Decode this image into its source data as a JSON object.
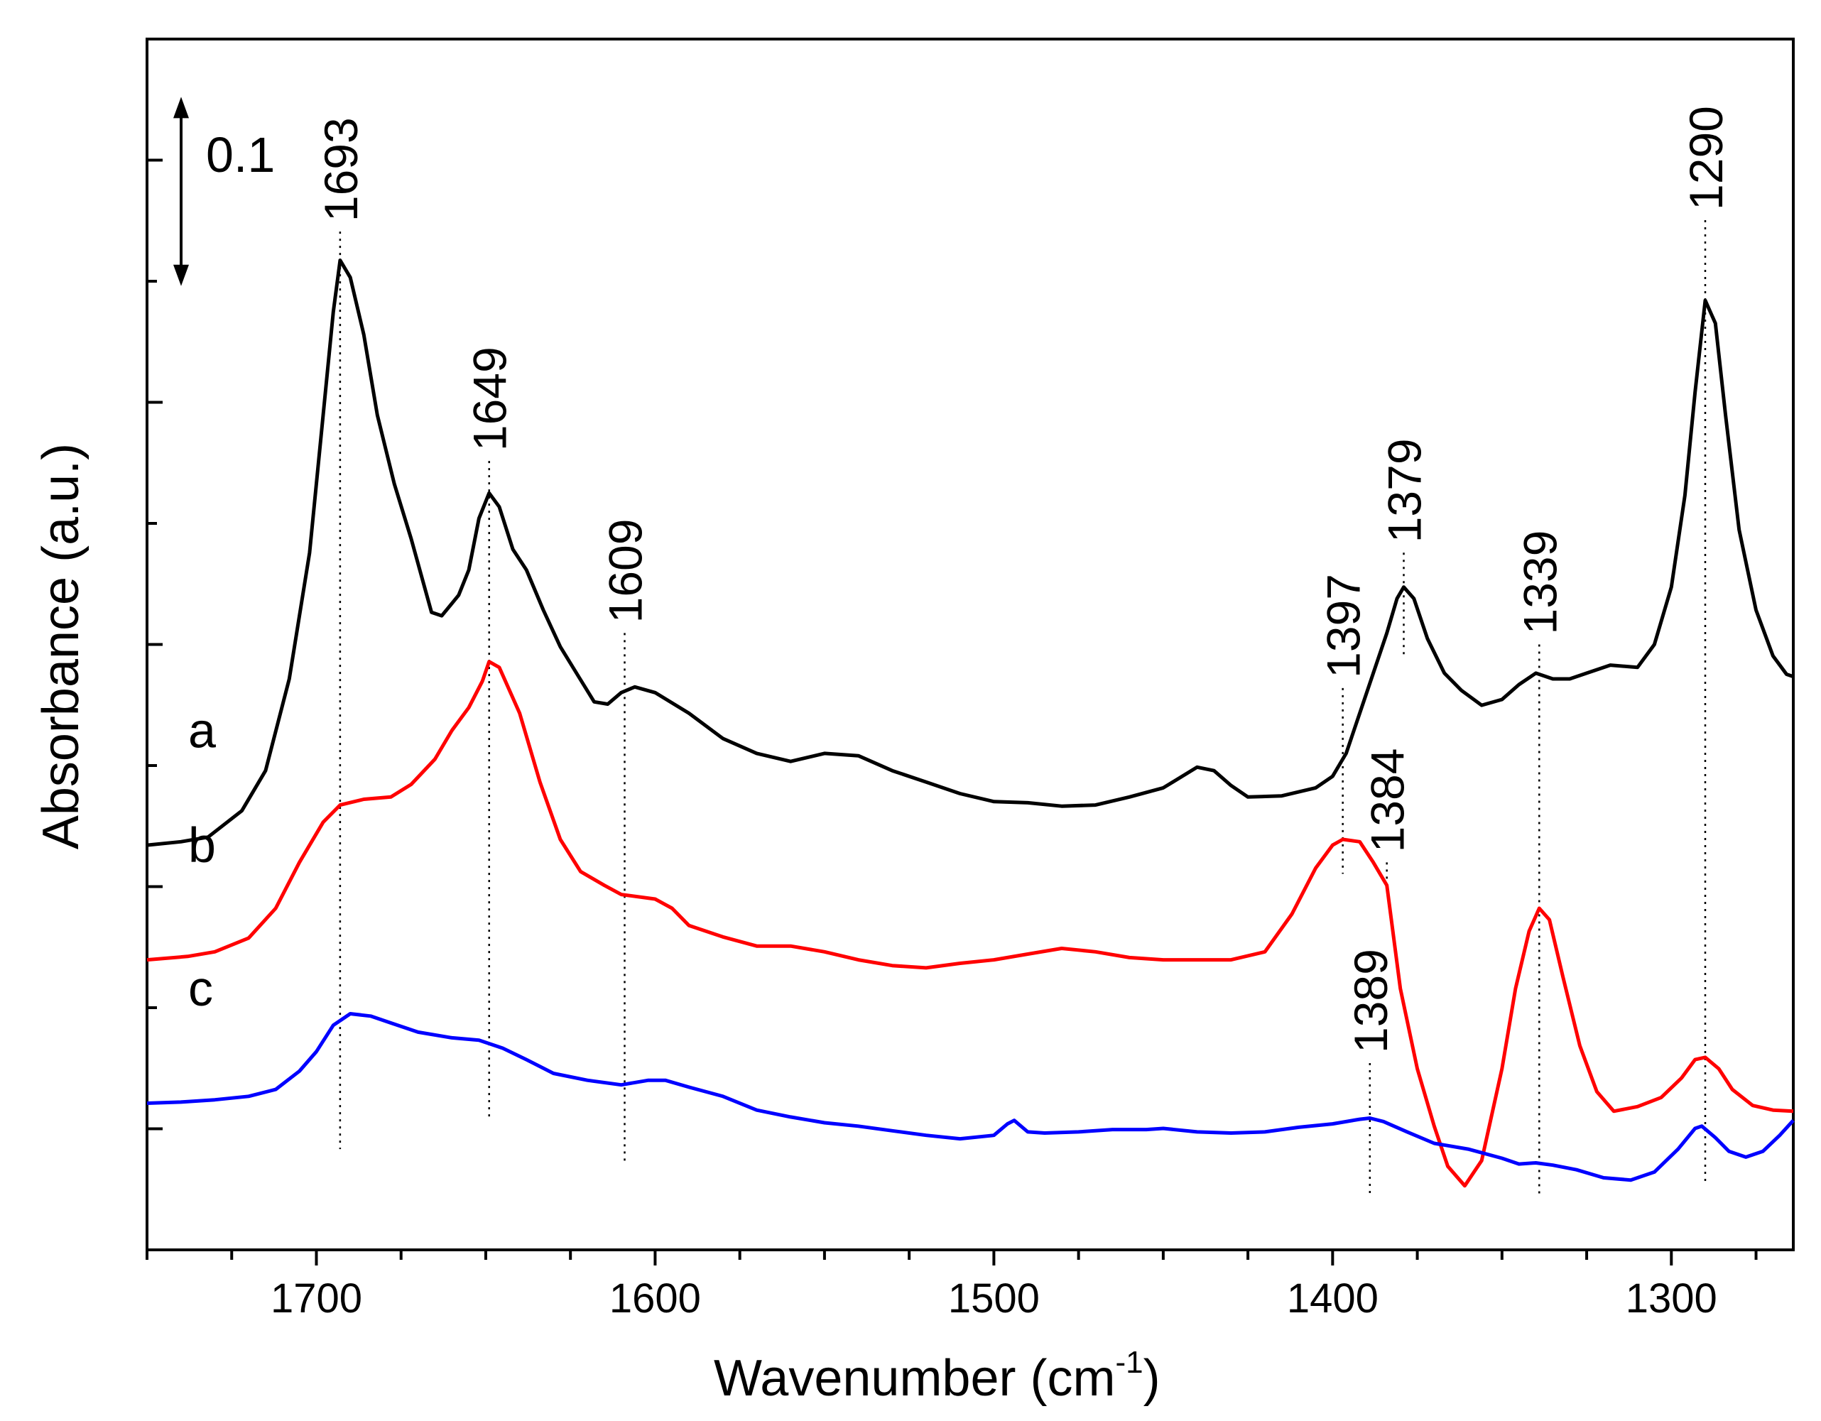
{
  "chart_data": {
    "type": "line",
    "title": "",
    "xlabel": "Wavenumber (cm",
    "xlabel_sup": "-1",
    "xlabel_close": ")",
    "ylabel": "Absorbance (a.u.)",
    "xlim": [
      1750,
      1264
    ],
    "ylim": [
      0,
      1
    ],
    "x_reversed": true,
    "xticks": [
      1700,
      1600,
      1500,
      1400,
      1300
    ],
    "xtick_labels": [
      "1700",
      "1600",
      "1500",
      "1400",
      "1300"
    ],
    "yticks_count": 11,
    "scale_bar": {
      "label": "0.1",
      "value": 0.1
    },
    "series": [
      {
        "name": "a",
        "color": "#000000",
        "points": [
          [
            1750,
            0.325
          ],
          [
            1740,
            0.328
          ],
          [
            1732,
            0.332
          ],
          [
            1722,
            0.355
          ],
          [
            1715,
            0.39
          ],
          [
            1708,
            0.47
          ],
          [
            1702,
            0.58
          ],
          [
            1698,
            0.7
          ],
          [
            1695,
            0.79
          ],
          [
            1693,
            0.835
          ],
          [
            1690,
            0.82
          ],
          [
            1686,
            0.77
          ],
          [
            1682,
            0.7
          ],
          [
            1677,
            0.64
          ],
          [
            1672,
            0.592
          ],
          [
            1666,
            0.528
          ],
          [
            1663,
            0.525
          ],
          [
            1658,
            0.543
          ],
          [
            1655,
            0.565
          ],
          [
            1652,
            0.61
          ],
          [
            1649,
            0.632
          ],
          [
            1646,
            0.62
          ],
          [
            1642,
            0.583
          ],
          [
            1638,
            0.565
          ],
          [
            1633,
            0.53
          ],
          [
            1628,
            0.498
          ],
          [
            1623,
            0.474
          ],
          [
            1618,
            0.45
          ],
          [
            1614,
            0.448
          ],
          [
            1610,
            0.458
          ],
          [
            1606,
            0.463
          ],
          [
            1600,
            0.458
          ],
          [
            1590,
            0.44
          ],
          [
            1580,
            0.418
          ],
          [
            1570,
            0.405
          ],
          [
            1560,
            0.398
          ],
          [
            1550,
            0.405
          ],
          [
            1540,
            0.403
          ],
          [
            1530,
            0.39
          ],
          [
            1520,
            0.38
          ],
          [
            1510,
            0.37
          ],
          [
            1500,
            0.363
          ],
          [
            1490,
            0.362
          ],
          [
            1480,
            0.359
          ],
          [
            1470,
            0.36
          ],
          [
            1460,
            0.367
          ],
          [
            1450,
            0.375
          ],
          [
            1440,
            0.393
          ],
          [
            1435,
            0.39
          ],
          [
            1430,
            0.377
          ],
          [
            1425,
            0.367
          ],
          [
            1415,
            0.368
          ],
          [
            1405,
            0.375
          ],
          [
            1400,
            0.385
          ],
          [
            1396,
            0.405
          ],
          [
            1392,
            0.44
          ],
          [
            1388,
            0.475
          ],
          [
            1384,
            0.51
          ],
          [
            1381,
            0.54
          ],
          [
            1379,
            0.55
          ],
          [
            1376,
            0.54
          ],
          [
            1372,
            0.505
          ],
          [
            1367,
            0.475
          ],
          [
            1362,
            0.46
          ],
          [
            1356,
            0.447
          ],
          [
            1350,
            0.452
          ],
          [
            1345,
            0.465
          ],
          [
            1340,
            0.475
          ],
          [
            1335,
            0.47
          ],
          [
            1330,
            0.47
          ],
          [
            1325,
            0.475
          ],
          [
            1318,
            0.482
          ],
          [
            1310,
            0.48
          ],
          [
            1305,
            0.5
          ],
          [
            1300,
            0.55
          ],
          [
            1296,
            0.63
          ],
          [
            1293,
            0.72
          ],
          [
            1290,
            0.8
          ],
          [
            1287,
            0.78
          ],
          [
            1284,
            0.7
          ],
          [
            1280,
            0.6
          ],
          [
            1275,
            0.53
          ],
          [
            1270,
            0.49
          ],
          [
            1266,
            0.474
          ],
          [
            1264,
            0.472
          ]
        ]
      },
      {
        "name": "b",
        "color": "#ff0000",
        "points": [
          [
            1750,
            0.225
          ],
          [
            1738,
            0.228
          ],
          [
            1730,
            0.232
          ],
          [
            1720,
            0.244
          ],
          [
            1712,
            0.27
          ],
          [
            1705,
            0.31
          ],
          [
            1698,
            0.345
          ],
          [
            1693,
            0.36
          ],
          [
            1686,
            0.365
          ],
          [
            1678,
            0.367
          ],
          [
            1672,
            0.378
          ],
          [
            1665,
            0.4
          ],
          [
            1660,
            0.425
          ],
          [
            1655,
            0.445
          ],
          [
            1651,
            0.468
          ],
          [
            1649,
            0.485
          ],
          [
            1646,
            0.48
          ],
          [
            1640,
            0.44
          ],
          [
            1634,
            0.38
          ],
          [
            1628,
            0.33
          ],
          [
            1622,
            0.302
          ],
          [
            1615,
            0.29
          ],
          [
            1610,
            0.282
          ],
          [
            1600,
            0.278
          ],
          [
            1595,
            0.27
          ],
          [
            1590,
            0.255
          ],
          [
            1580,
            0.245
          ],
          [
            1570,
            0.237
          ],
          [
            1560,
            0.237
          ],
          [
            1550,
            0.232
          ],
          [
            1540,
            0.225
          ],
          [
            1530,
            0.22
          ],
          [
            1520,
            0.218
          ],
          [
            1510,
            0.222
          ],
          [
            1500,
            0.225
          ],
          [
            1490,
            0.23
          ],
          [
            1480,
            0.235
          ],
          [
            1470,
            0.232
          ],
          [
            1460,
            0.227
          ],
          [
            1450,
            0.225
          ],
          [
            1440,
            0.225
          ],
          [
            1430,
            0.225
          ],
          [
            1420,
            0.232
          ],
          [
            1412,
            0.265
          ],
          [
            1405,
            0.305
          ],
          [
            1400,
            0.325
          ],
          [
            1397,
            0.33
          ],
          [
            1392,
            0.328
          ],
          [
            1388,
            0.31
          ],
          [
            1384,
            0.29
          ],
          [
            1380,
            0.2
          ],
          [
            1375,
            0.13
          ],
          [
            1370,
            0.08
          ],
          [
            1366,
            0.045
          ],
          [
            1361,
            0.028
          ],
          [
            1356,
            0.05
          ],
          [
            1350,
            0.13
          ],
          [
            1346,
            0.2
          ],
          [
            1342,
            0.25
          ],
          [
            1339,
            0.27
          ],
          [
            1336,
            0.26
          ],
          [
            1332,
            0.21
          ],
          [
            1327,
            0.15
          ],
          [
            1322,
            0.11
          ],
          [
            1317,
            0.093
          ],
          [
            1310,
            0.097
          ],
          [
            1303,
            0.105
          ],
          [
            1297,
            0.122
          ],
          [
            1293,
            0.138
          ],
          [
            1290,
            0.14
          ],
          [
            1286,
            0.13
          ],
          [
            1282,
            0.112
          ],
          [
            1276,
            0.098
          ],
          [
            1270,
            0.094
          ],
          [
            1264,
            0.093
          ]
        ]
      },
      {
        "name": "c",
        "color": "#0000ff",
        "points": [
          [
            1750,
            0.1
          ],
          [
            1740,
            0.101
          ],
          [
            1730,
            0.103
          ],
          [
            1720,
            0.106
          ],
          [
            1712,
            0.112
          ],
          [
            1705,
            0.128
          ],
          [
            1700,
            0.145
          ],
          [
            1695,
            0.168
          ],
          [
            1690,
            0.178
          ],
          [
            1684,
            0.176
          ],
          [
            1678,
            0.17
          ],
          [
            1670,
            0.162
          ],
          [
            1660,
            0.157
          ],
          [
            1652,
            0.155
          ],
          [
            1645,
            0.148
          ],
          [
            1638,
            0.138
          ],
          [
            1630,
            0.126
          ],
          [
            1620,
            0.12
          ],
          [
            1610,
            0.116
          ],
          [
            1602,
            0.12
          ],
          [
            1597,
            0.12
          ],
          [
            1590,
            0.114
          ],
          [
            1580,
            0.106
          ],
          [
            1570,
            0.094
          ],
          [
            1560,
            0.088
          ],
          [
            1550,
            0.083
          ],
          [
            1540,
            0.08
          ],
          [
            1530,
            0.076
          ],
          [
            1520,
            0.072
          ],
          [
            1510,
            0.069
          ],
          [
            1500,
            0.072
          ],
          [
            1496,
            0.082
          ],
          [
            1494,
            0.085
          ],
          [
            1490,
            0.075
          ],
          [
            1485,
            0.074
          ],
          [
            1475,
            0.075
          ],
          [
            1465,
            0.077
          ],
          [
            1455,
            0.077
          ],
          [
            1450,
            0.078
          ],
          [
            1440,
            0.075
          ],
          [
            1430,
            0.074
          ],
          [
            1420,
            0.075
          ],
          [
            1410,
            0.079
          ],
          [
            1400,
            0.082
          ],
          [
            1392,
            0.086
          ],
          [
            1389,
            0.087
          ],
          [
            1385,
            0.084
          ],
          [
            1378,
            0.075
          ],
          [
            1370,
            0.065
          ],
          [
            1360,
            0.06
          ],
          [
            1350,
            0.052
          ],
          [
            1345,
            0.047
          ],
          [
            1340,
            0.048
          ],
          [
            1335,
            0.046
          ],
          [
            1328,
            0.042
          ],
          [
            1320,
            0.035
          ],
          [
            1312,
            0.033
          ],
          [
            1305,
            0.04
          ],
          [
            1298,
            0.06
          ],
          [
            1293,
            0.078
          ],
          [
            1291,
            0.08
          ],
          [
            1287,
            0.07
          ],
          [
            1283,
            0.058
          ],
          [
            1278,
            0.053
          ],
          [
            1273,
            0.058
          ],
          [
            1268,
            0.072
          ],
          [
            1264,
            0.085
          ]
        ]
      }
    ],
    "peak_labels": [
      {
        "text": "1693",
        "x": 1693,
        "line_y_top": 0.86,
        "line_y_bottom": 0.06
      },
      {
        "text": "1649",
        "x": 1649,
        "line_y_top": 0.66,
        "line_y_bottom": 0.085
      },
      {
        "text": "1609",
        "x": 1609,
        "line_y_top": 0.51,
        "line_y_bottom": 0.048
      },
      {
        "text": "1397",
        "x": 1397,
        "line_y_top": 0.462,
        "line_y_bottom": 0.3
      },
      {
        "text": "1384",
        "x": 1384,
        "line_y_top": 0.31,
        "line_y_bottom": 0.29
      },
      {
        "text": "1379",
        "x": 1379,
        "line_y_top": 0.58,
        "line_y_bottom": 0.49
      },
      {
        "text": "1339",
        "x": 1339,
        "line_y_top": 0.5,
        "line_y_bottom": 0.02
      },
      {
        "text": "1389",
        "x": 1389,
        "line_y_top": 0.135,
        "line_y_bottom": 0.02
      },
      {
        "text": "1290",
        "x": 1290,
        "line_y_top": 0.87,
        "line_y_bottom": 0.03
      }
    ],
    "trace_labels": [
      {
        "text": "a",
        "series": "a"
      },
      {
        "text": "b",
        "series": "b"
      },
      {
        "text": "c",
        "series": "c"
      }
    ]
  }
}
